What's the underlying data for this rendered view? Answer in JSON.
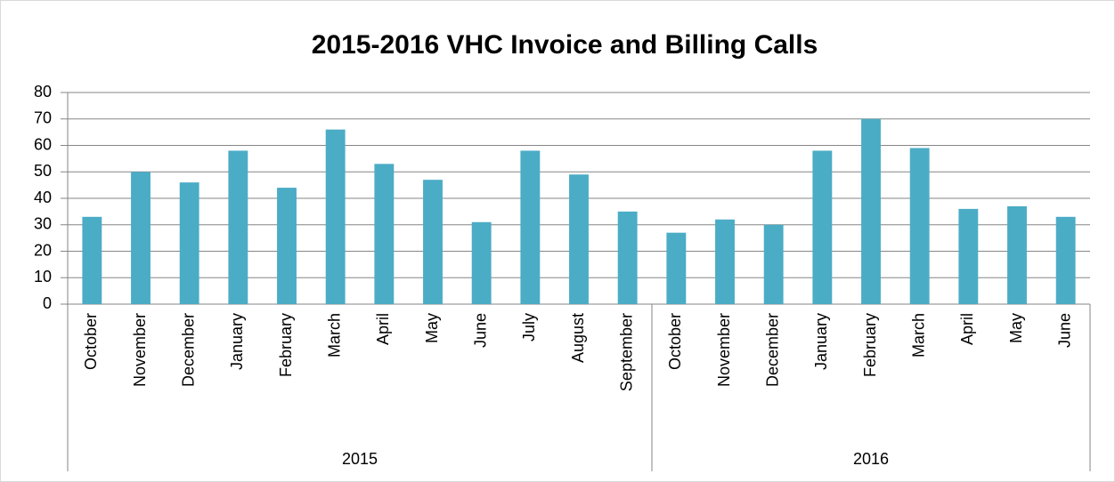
{
  "chart_data": {
    "type": "bar",
    "title": "2015-2016 VHC Invoice and Billing Calls",
    "category_groups": [
      {
        "label": "2015",
        "categories": [
          "October",
          "November",
          "December",
          "January",
          "February",
          "March",
          "April",
          "May",
          "June",
          "July",
          "August",
          "September"
        ]
      },
      {
        "label": "2016",
        "categories": [
          "October",
          "November",
          "December",
          "January",
          "February",
          "March",
          "April",
          "May",
          "June"
        ]
      }
    ],
    "values": [
      33,
      50,
      46,
      58,
      44,
      66,
      53,
      47,
      31,
      58,
      49,
      35,
      27,
      32,
      30,
      58,
      70,
      59,
      36,
      37,
      33
    ],
    "color": "#4bacc6",
    "ylim": [
      0,
      80
    ],
    "yticks": [
      0,
      10,
      20,
      30,
      40,
      50,
      60,
      70,
      80
    ],
    "grid": true
  }
}
